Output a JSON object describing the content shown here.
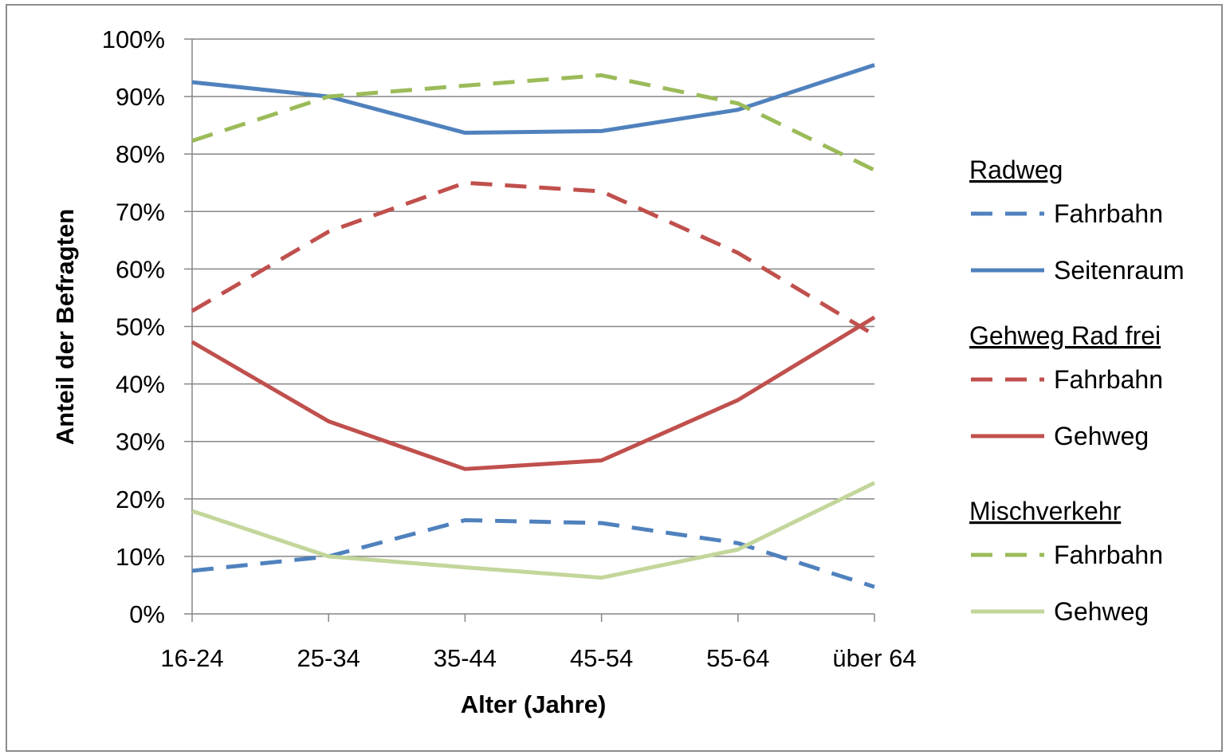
{
  "chart_data": {
    "type": "line",
    "title": "",
    "xlabel": "Alter (Jahre)",
    "ylabel": "Anteil der Befragten",
    "categories": [
      "16-24",
      "25-34",
      "35-44",
      "45-54",
      "55-64",
      "über 64"
    ],
    "ylim": [
      0,
      100
    ],
    "yticks": [
      "0%",
      "10%",
      "20%",
      "30%",
      "40%",
      "50%",
      "60%",
      "70%",
      "80%",
      "90%",
      "100%"
    ],
    "grid": true,
    "legend_position": "right",
    "legend_groups": [
      {
        "title": "Radweg",
        "entries": [
          "Fahrbahn",
          "Seitenraum"
        ]
      },
      {
        "title": "Gehweg Rad frei",
        "entries": [
          "Fahrbahn",
          "Gehweg"
        ]
      },
      {
        "title": "Mischverkehr",
        "entries": [
          "Fahrbahn",
          "Gehweg"
        ]
      }
    ],
    "series": [
      {
        "group": "Radweg",
        "name": "Fahrbahn",
        "color": "#4f81bd",
        "dash": true,
        "values": [
          7.5,
          10,
          16.3,
          15.8,
          12.3,
          4.7
        ]
      },
      {
        "group": "Radweg",
        "name": "Seitenraum",
        "color": "#4f81bd",
        "dash": false,
        "values": [
          92.5,
          90,
          83.7,
          84,
          87.7,
          95.5
        ]
      },
      {
        "group": "Gehweg Rad frei",
        "name": "Fahrbahn",
        "color": "#c0504d",
        "dash": true,
        "values": [
          52.7,
          66.5,
          75,
          73.5,
          62.8,
          48.5
        ]
      },
      {
        "group": "Gehweg Rad frei",
        "name": "Gehweg",
        "color": "#c0504d",
        "dash": false,
        "values": [
          47.3,
          33.5,
          25.2,
          26.7,
          37.2,
          51.6
        ]
      },
      {
        "group": "Mischverkehr",
        "name": "Fahrbahn",
        "color": "#9bbb59",
        "dash": true,
        "values": [
          82.3,
          90,
          91.9,
          93.7,
          88.8,
          77.2
        ]
      },
      {
        "group": "Mischverkehr",
        "name": "Gehweg",
        "color": "#c3d69b",
        "dash": false,
        "values": [
          17.9,
          10,
          8.1,
          6.3,
          11.2,
          22.8
        ]
      }
    ]
  }
}
